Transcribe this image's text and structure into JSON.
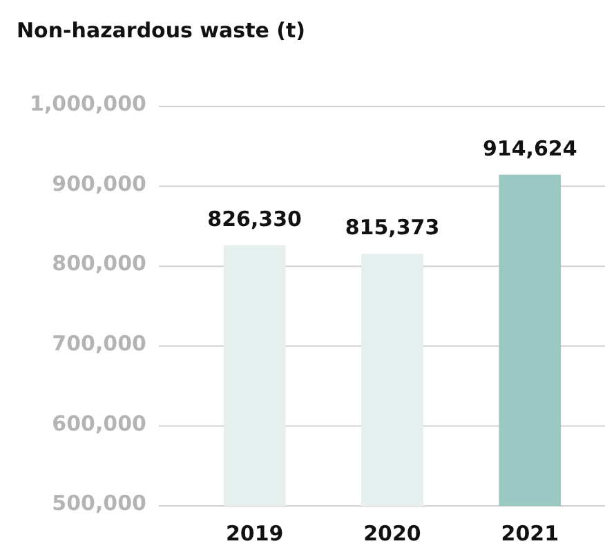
{
  "chart_data": {
    "type": "bar",
    "title": "Non-hazardous waste (t)",
    "categories": [
      "2019",
      "2020",
      "2021"
    ],
    "values": [
      826330,
      815373,
      914624
    ],
    "colors": [
      "#e4efee",
      "#e4efee",
      "#99c9c2"
    ],
    "ylim": [
      500000,
      1000000
    ],
    "yticks": [
      {
        "value": 500000,
        "label": "500,000"
      },
      {
        "value": 600000,
        "label": "600,000"
      },
      {
        "value": 700000,
        "label": "700,000"
      },
      {
        "value": 800000,
        "label": "800,000"
      },
      {
        "value": 900000,
        "label": "900,000"
      },
      {
        "value": 1000000,
        "label": "1,000,000"
      }
    ],
    "value_labels": [
      "826,330",
      "815,373",
      "914,624"
    ],
    "grid": "y"
  }
}
